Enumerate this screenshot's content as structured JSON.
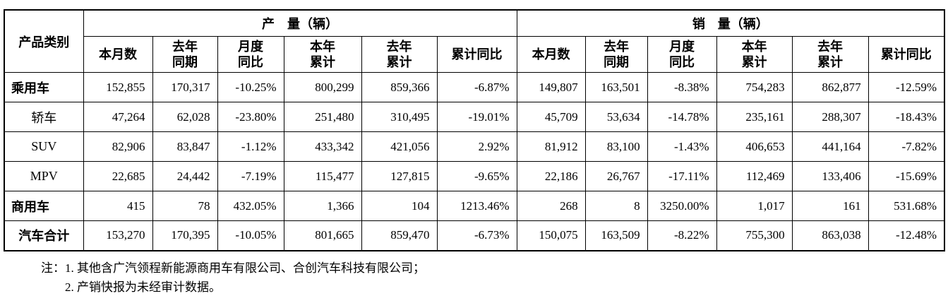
{
  "colors": {
    "background": "#ffffff",
    "border": "#000000",
    "text": "#000000"
  },
  "table": {
    "corner_header": "产品类别",
    "groups": [
      {
        "label": "产　量（辆）"
      },
      {
        "label": "销　量（辆）"
      }
    ],
    "sub_headers": [
      "本月数",
      "去年\n同期",
      "月度\n同比",
      "本年\n累计",
      "去年\n累计",
      "累计同比"
    ],
    "rows": [
      {
        "category": "乘用车",
        "bold": true,
        "align": "left",
        "values": [
          "152,855",
          "170,317",
          "-10.25%",
          "800,299",
          "859,366",
          "-6.87%",
          "149,807",
          "163,501",
          "-8.38%",
          "754,283",
          "862,877",
          "-12.59%"
        ]
      },
      {
        "category": "轿车",
        "bold": false,
        "align": "center",
        "values": [
          "47,264",
          "62,028",
          "-23.80%",
          "251,480",
          "310,495",
          "-19.01%",
          "45,709",
          "53,634",
          "-14.78%",
          "235,161",
          "288,307",
          "-18.43%"
        ]
      },
      {
        "category": "SUV",
        "bold": false,
        "align": "center",
        "values": [
          "82,906",
          "83,847",
          "-1.12%",
          "433,342",
          "421,056",
          "2.92%",
          "81,912",
          "83,100",
          "-1.43%",
          "406,653",
          "441,164",
          "-7.82%"
        ]
      },
      {
        "category": "MPV",
        "bold": false,
        "align": "center",
        "values": [
          "22,685",
          "24,442",
          "-7.19%",
          "115,477",
          "127,815",
          "-9.65%",
          "22,186",
          "26,767",
          "-17.11%",
          "112,469",
          "133,406",
          "-15.69%"
        ]
      },
      {
        "category": "商用车",
        "bold": true,
        "align": "left",
        "values": [
          "415",
          "78",
          "432.05%",
          "1,366",
          "104",
          "1213.46%",
          "268",
          "8",
          "3250.00%",
          "1,017",
          "161",
          "531.68%"
        ]
      },
      {
        "category": "汽车合计",
        "bold": true,
        "align": "center",
        "values": [
          "153,270",
          "170,395",
          "-10.05%",
          "801,665",
          "859,470",
          "-6.73%",
          "150,075",
          "163,509",
          "-8.22%",
          "755,300",
          "863,038",
          "-12.48%"
        ]
      }
    ]
  },
  "notes": {
    "prefix": "注：",
    "items": [
      "1. 其他含广汽领程新能源商用车有限公司、合创汽车科技有限公司；",
      "2. 产销快报为未经审计数据。"
    ]
  }
}
